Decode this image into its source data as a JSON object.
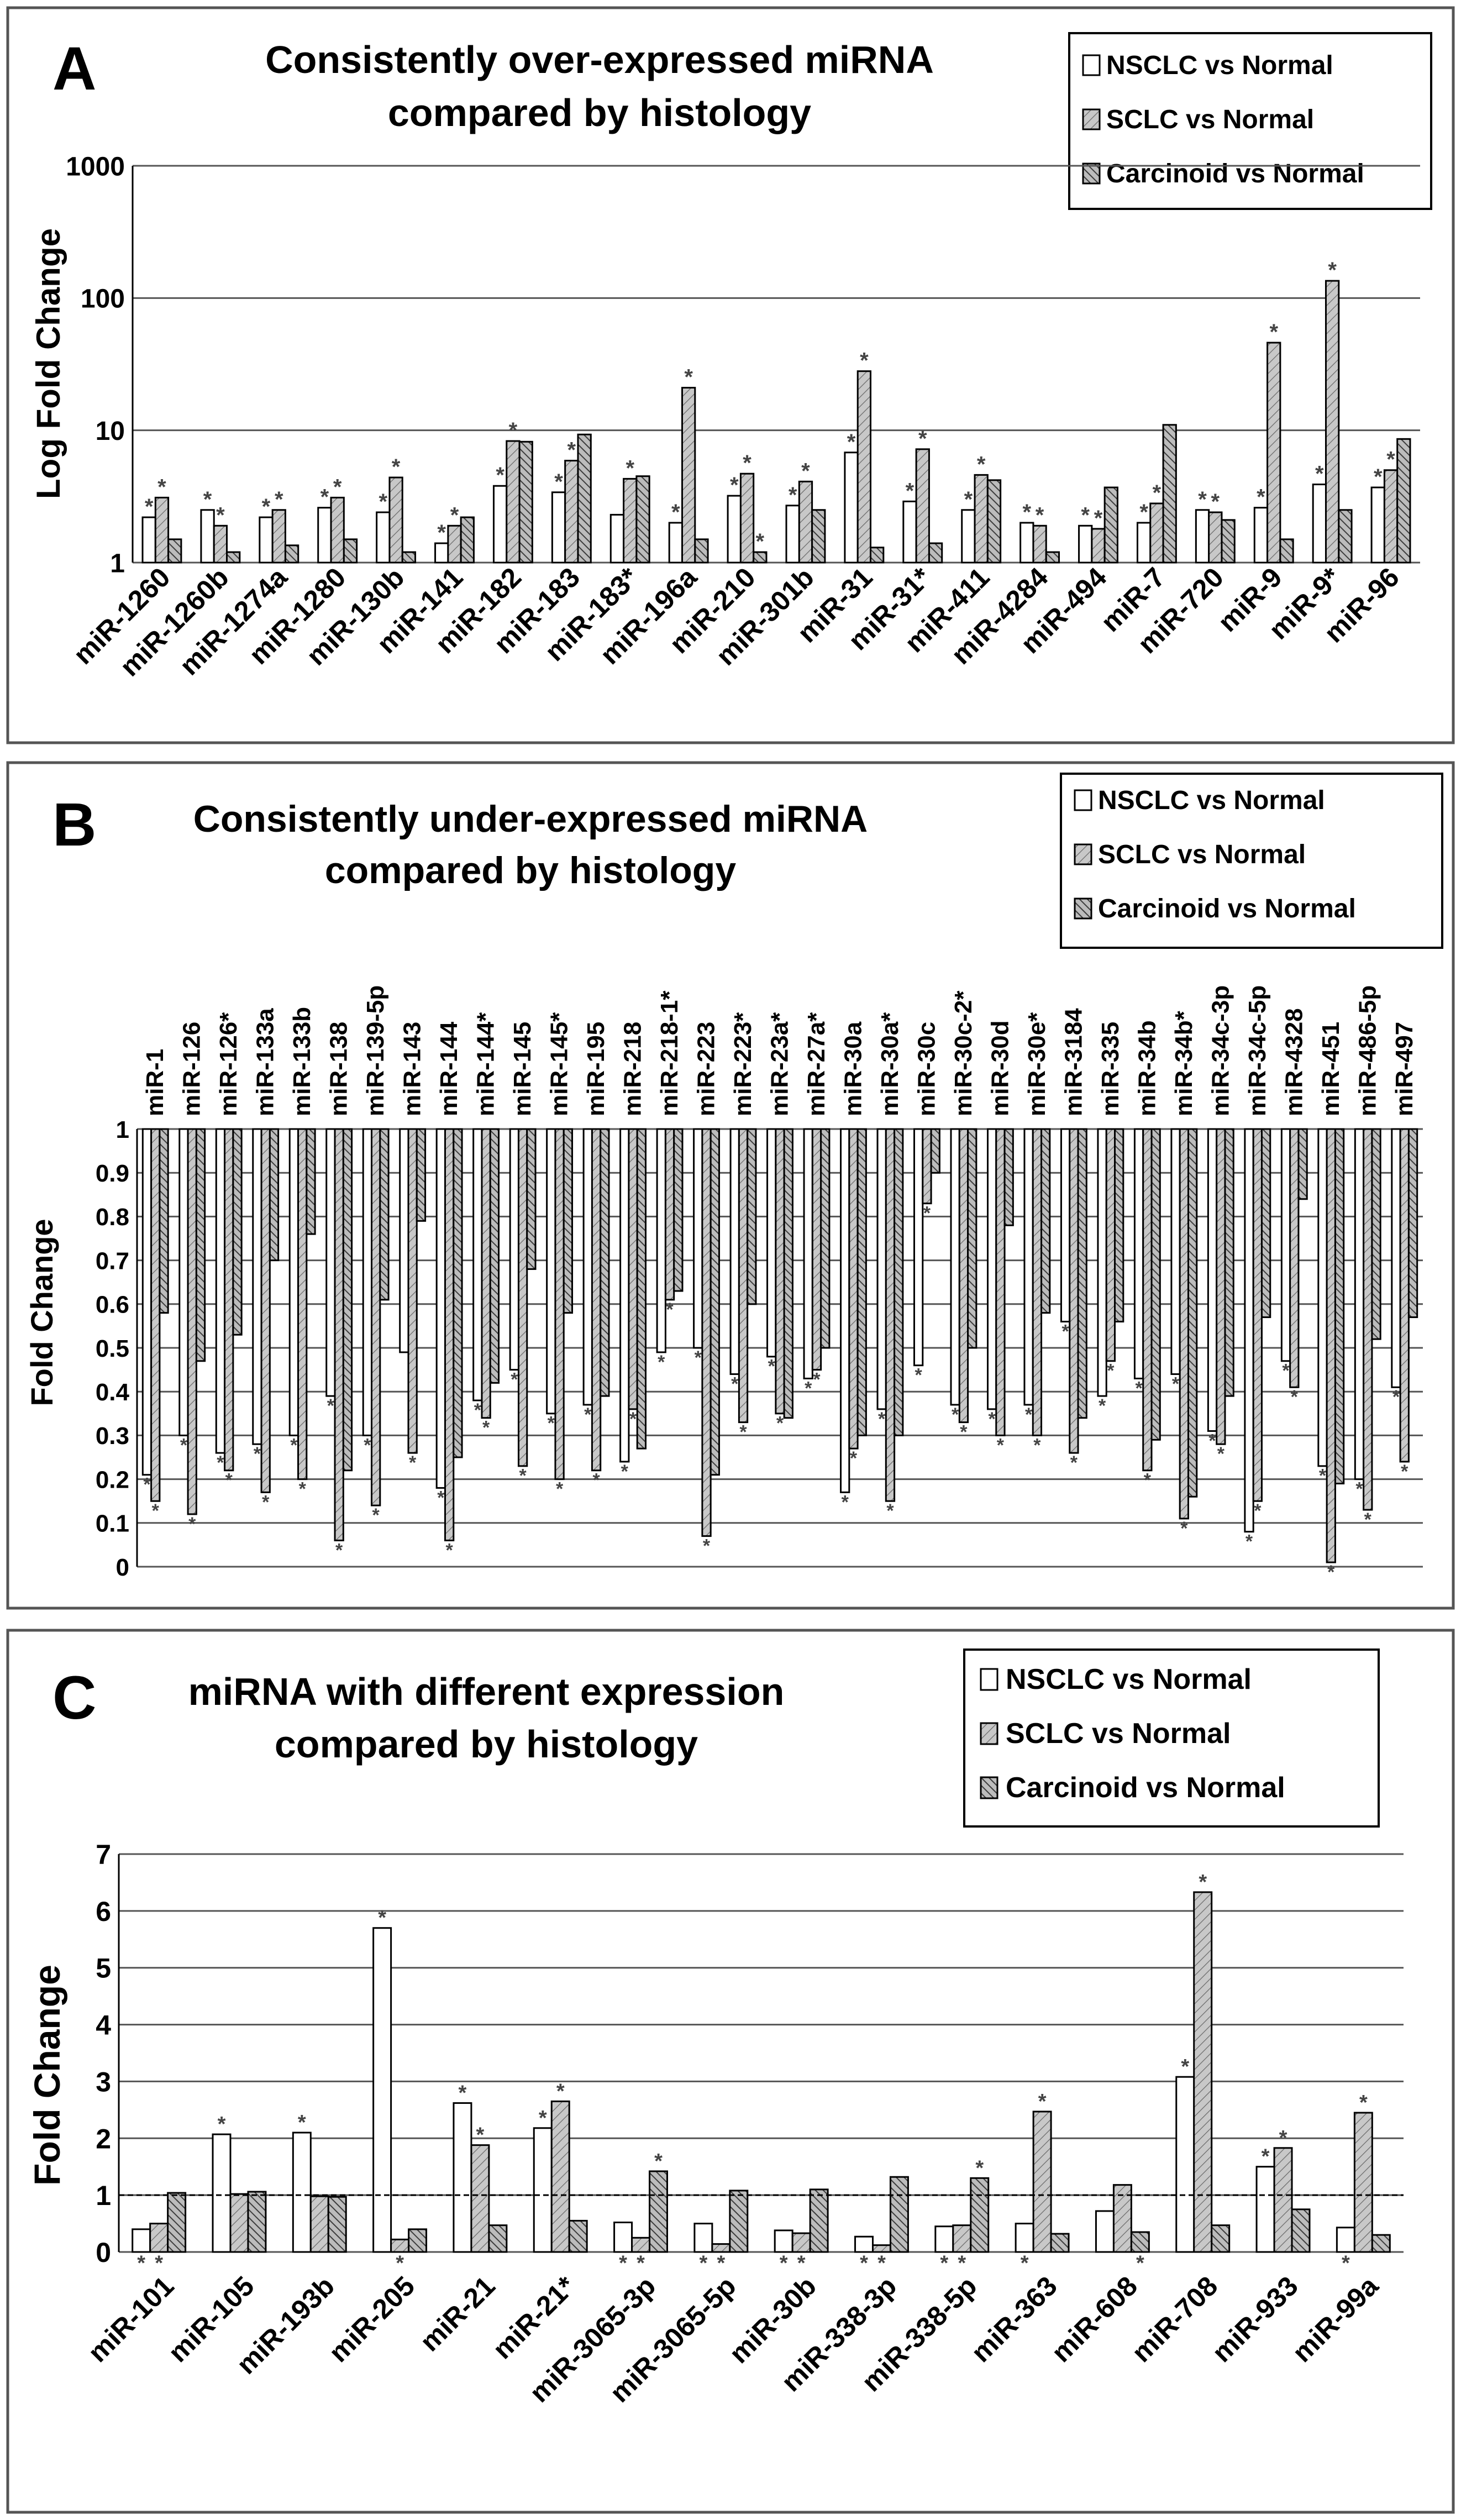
{
  "panels": {
    "A": {
      "letter": "A",
      "title_line1": "Consistently over-expressed miRNA",
      "title_line2": "compared by histology"
    },
    "B": {
      "letter": "B",
      "title_line1": "Consistently under-expressed miRNA",
      "title_line2": "compared by histology"
    },
    "C": {
      "letter": "C",
      "title_line1": "miRNA with different expression",
      "title_line2": "compared by histology"
    }
  },
  "legend_entries": [
    "NSCLC vs Normal",
    "SCLC vs Normal",
    "Carcinoid vs Normal"
  ],
  "significance_marker": "*",
  "colors": {
    "nsclc_fill": "#ffffff",
    "sclc_fill": "#c8c8c8",
    "carcinoid_fill": "#bcbcbc",
    "stroke": "#000000",
    "gridline": "#555555"
  },
  "chart_data": [
    {
      "panel": "A",
      "type": "bar",
      "scale": "log",
      "ylabel": "Log Fold Change",
      "ylim": [
        1,
        1000
      ],
      "yticks": [
        "1",
        "10",
        "100",
        "1000"
      ],
      "categories": [
        "miR-1260",
        "miR-1260b",
        "miR-1274a",
        "miR-1280",
        "miR-130b",
        "miR-141",
        "miR-182",
        "miR-183",
        "miR-183*",
        "miR-196a",
        "miR-210",
        "miR-301b",
        "miR-31",
        "miR-31*",
        "miR-411",
        "miR-4284",
        "miR-494",
        "miR-7",
        "miR-720",
        "miR-9",
        "miR-9*",
        "miR-96"
      ],
      "series": [
        {
          "name": "NSCLC vs Normal",
          "values": [
            2.2,
            2.5,
            2.2,
            2.6,
            2.4,
            1.4,
            3.8,
            3.4,
            2.3,
            2.0,
            3.2,
            2.7,
            6.8,
            2.9,
            2.5,
            2.0,
            1.9,
            2.0,
            2.5,
            2.6,
            3.9,
            3.7
          ],
          "sig": [
            true,
            true,
            true,
            true,
            true,
            true,
            true,
            true,
            false,
            true,
            true,
            true,
            true,
            true,
            true,
            true,
            true,
            true,
            true,
            true,
            true,
            true
          ]
        },
        {
          "name": "SCLC vs Normal",
          "values": [
            3.1,
            1.9,
            2.5,
            3.1,
            4.4,
            1.9,
            8.3,
            5.9,
            4.3,
            21.0,
            4.7,
            4.1,
            28.0,
            7.2,
            4.6,
            1.9,
            1.8,
            2.8,
            2.4,
            46.0,
            135.0,
            5.0
          ],
          "sig": [
            true,
            true,
            true,
            true,
            true,
            true,
            true,
            true,
            true,
            true,
            true,
            true,
            true,
            true,
            true,
            true,
            true,
            true,
            true,
            true,
            true,
            true
          ]
        },
        {
          "name": "Carcinoid vs Normal",
          "values": [
            1.5,
            1.2,
            1.35,
            1.5,
            1.2,
            2.2,
            8.2,
            9.3,
            4.5,
            1.5,
            1.2,
            2.5,
            1.3,
            1.4,
            4.2,
            1.2,
            3.7,
            11.0,
            2.1,
            1.5,
            2.5,
            8.6
          ],
          "sig": [
            false,
            false,
            false,
            false,
            false,
            false,
            false,
            false,
            false,
            false,
            true,
            false,
            false,
            false,
            false,
            false,
            false,
            false,
            false,
            false,
            false,
            false
          ]
        }
      ]
    },
    {
      "panel": "B",
      "type": "bar",
      "scale": "linear",
      "inverted": true,
      "ylabel": "Fold Change",
      "ylim": [
        0,
        1
      ],
      "yticks": [
        "0",
        "0.1",
        "0.2",
        "0.3",
        "0.4",
        "0.5",
        "0.6",
        "0.7",
        "0.8",
        "0.9",
        "1"
      ],
      "categories": [
        "miR-1",
        "miR-126",
        "miR-126*",
        "miR-133a",
        "miR-133b",
        "miR-138",
        "miR-139-5p",
        "miR-143",
        "miR-144",
        "miR-144*",
        "miR-145",
        "miR-145*",
        "miR-195",
        "miR-218",
        "miR-218-1*",
        "miR-223",
        "miR-223*",
        "miR-23a*",
        "miR-27a*",
        "miR-30a",
        "miR-30a*",
        "miR-30c",
        "miR-30c-2*",
        "miR-30d",
        "miR-30e*",
        "miR-3184",
        "miR-335",
        "miR-34b",
        "miR-34b*",
        "miR-34c-3p",
        "miR-34c-5p",
        "miR-4328",
        "miR-451",
        "miR-486-5p",
        "miR-497"
      ],
      "series": [
        {
          "name": "NSCLC vs Normal",
          "values": [
            0.21,
            0.3,
            0.26,
            0.28,
            0.3,
            0.39,
            0.3,
            0.49,
            0.18,
            0.38,
            0.45,
            0.35,
            0.37,
            0.24,
            0.49,
            0.5,
            0.44,
            0.48,
            0.43,
            0.17,
            0.36,
            0.46,
            0.37,
            0.36,
            0.37,
            0.56,
            0.39,
            0.43,
            0.44,
            0.31,
            0.08,
            0.47,
            0.23,
            0.2,
            0.41
          ],
          "sig": [
            true,
            true,
            true,
            true,
            true,
            true,
            true,
            false,
            true,
            true,
            true,
            true,
            true,
            true,
            true,
            true,
            true,
            true,
            true,
            true,
            true,
            true,
            true,
            true,
            true,
            true,
            true,
            true,
            true,
            true,
            true,
            true,
            true,
            true,
            true
          ]
        },
        {
          "name": "SCLC vs Normal",
          "values": [
            0.15,
            0.12,
            0.22,
            0.17,
            0.2,
            0.06,
            0.14,
            0.26,
            0.06,
            0.34,
            0.23,
            0.2,
            0.22,
            0.36,
            0.61,
            0.07,
            0.33,
            0.35,
            0.45,
            0.27,
            0.15,
            0.83,
            0.33,
            0.3,
            0.3,
            0.26,
            0.47,
            0.22,
            0.11,
            0.28,
            0.15,
            0.41,
            0.01,
            0.13,
            0.24
          ],
          "sig": [
            true,
            true,
            true,
            true,
            true,
            true,
            true,
            true,
            true,
            true,
            true,
            true,
            true,
            true,
            true,
            true,
            true,
            true,
            true,
            true,
            true,
            true,
            true,
            true,
            true,
            true,
            true,
            true,
            true,
            true,
            true,
            true,
            true,
            true,
            true
          ]
        },
        {
          "name": "Carcinoid vs Normal",
          "values": [
            0.58,
            0.47,
            0.53,
            0.7,
            0.76,
            0.22,
            0.61,
            0.79,
            0.25,
            0.42,
            0.68,
            0.58,
            0.39,
            0.27,
            0.63,
            0.21,
            0.6,
            0.34,
            0.5,
            0.3,
            0.3,
            0.9,
            0.5,
            0.78,
            0.58,
            0.34,
            0.56,
            0.29,
            0.16,
            0.39,
            0.57,
            0.84,
            0.19,
            0.52,
            0.57
          ],
          "sig": [
            false,
            false,
            false,
            false,
            false,
            false,
            false,
            false,
            false,
            false,
            false,
            false,
            false,
            false,
            false,
            false,
            false,
            false,
            false,
            false,
            false,
            false,
            false,
            false,
            false,
            false,
            false,
            false,
            false,
            false,
            false,
            false,
            false,
            false,
            false
          ]
        }
      ]
    },
    {
      "panel": "C",
      "type": "bar",
      "scale": "linear",
      "ylabel": "Fold Change",
      "ylim": [
        0,
        7
      ],
      "yticks": [
        "0",
        "1",
        "2",
        "3",
        "4",
        "5",
        "6",
        "7"
      ],
      "reference_line": 1,
      "categories": [
        "miR-101",
        "miR-105",
        "miR-193b",
        "miR-205",
        "miR-21",
        "miR-21*",
        "miR-3065-3p",
        "miR-3065-5p",
        "miR-30b",
        "miR-338-3p",
        "miR-338-5p",
        "miR-363",
        "miR-608",
        "miR-708",
        "miR-933",
        "miR-99a"
      ],
      "series": [
        {
          "name": "NSCLC vs Normal",
          "values": [
            0.4,
            2.07,
            2.1,
            5.7,
            2.62,
            2.18,
            0.52,
            0.5,
            0.38,
            0.27,
            0.45,
            0.5,
            0.72,
            3.08,
            1.5,
            0.43
          ],
          "sig": [
            true,
            true,
            true,
            true,
            true,
            true,
            true,
            true,
            true,
            true,
            true,
            true,
            false,
            true,
            true,
            true
          ]
        },
        {
          "name": "SCLC vs Normal",
          "values": [
            0.5,
            1.02,
            0.98,
            0.22,
            1.88,
            2.65,
            0.25,
            0.14,
            0.33,
            0.12,
            0.47,
            2.47,
            1.18,
            6.33,
            1.83,
            2.45
          ],
          "sig": [
            true,
            false,
            false,
            true,
            true,
            true,
            true,
            true,
            true,
            true,
            true,
            true,
            false,
            true,
            true,
            true
          ]
        },
        {
          "name": "Carcinoid vs Normal",
          "values": [
            1.04,
            1.06,
            0.97,
            0.4,
            0.47,
            0.55,
            1.42,
            1.08,
            1.1,
            1.32,
            1.3,
            0.32,
            0.35,
            0.47,
            0.75,
            0.3
          ],
          "sig": [
            false,
            false,
            false,
            false,
            false,
            false,
            true,
            false,
            false,
            false,
            true,
            false,
            true,
            false,
            false,
            false
          ]
        }
      ]
    }
  ]
}
